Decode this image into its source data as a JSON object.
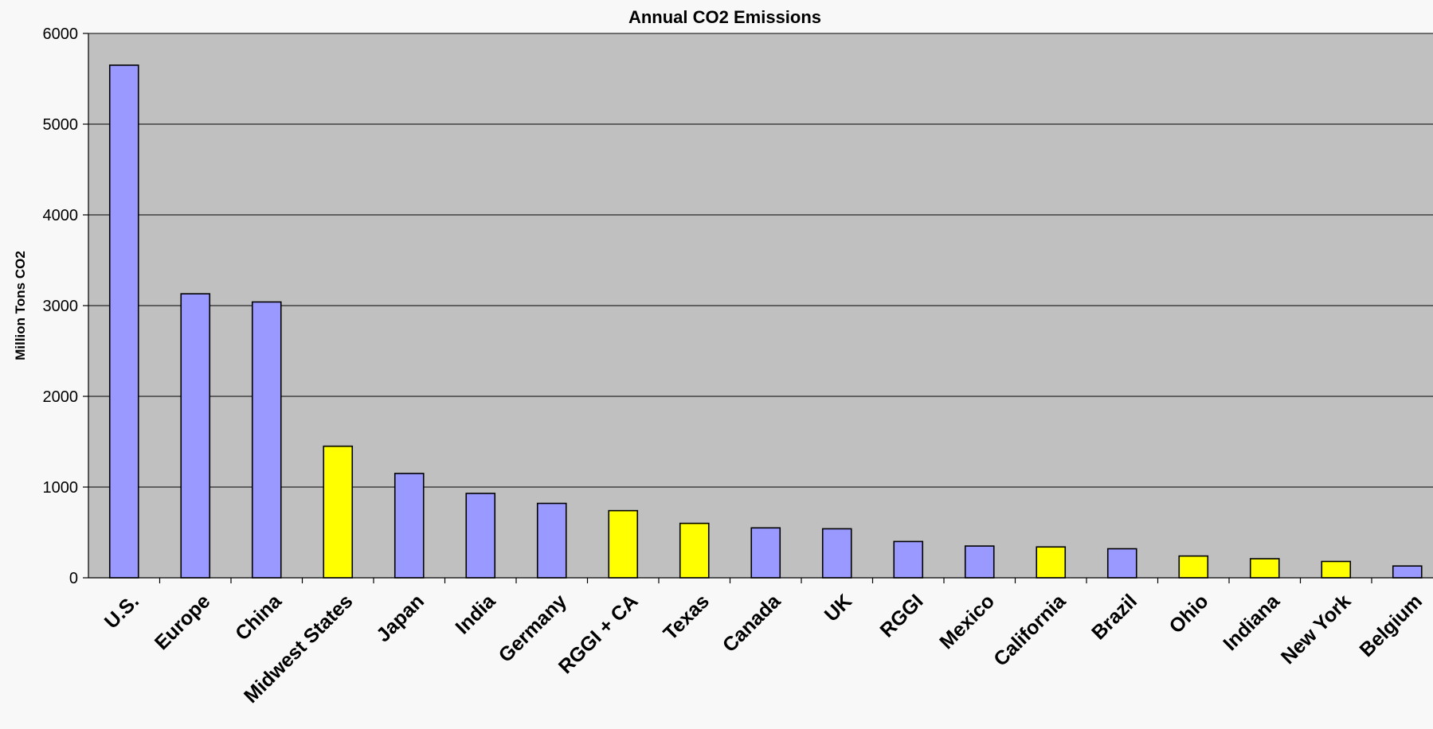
{
  "chart_data": {
    "type": "bar",
    "title": "Annual CO2 Emissions",
    "xlabel": "",
    "ylabel": "Million Tons CO2",
    "ylim": [
      0,
      6000
    ],
    "yticks": [
      "0",
      "1000",
      "2000",
      "3000",
      "4000",
      "5000",
      "6000"
    ],
    "grid": true,
    "categories": [
      "U.S.",
      "Europe",
      "China",
      "Midwest States",
      "Japan",
      "India",
      "Germany",
      "RGGI + CA",
      "Texas",
      "Canada",
      "UK",
      "RGGI",
      "Mexico",
      "California",
      "Brazil",
      "Ohio",
      "Indiana",
      "New York",
      "Belgium"
    ],
    "values": [
      5650,
      3130,
      3040,
      1450,
      1150,
      930,
      820,
      740,
      600,
      550,
      540,
      400,
      350,
      340,
      320,
      240,
      210,
      180,
      130
    ],
    "group": [
      "country",
      "country",
      "country",
      "state",
      "country",
      "country",
      "country",
      "state",
      "state",
      "country",
      "country",
      "country",
      "country",
      "state",
      "country",
      "state",
      "state",
      "state",
      "country"
    ],
    "colors": {
      "country": "#9999ff",
      "state": "#ffff00",
      "plot_background": "#c0c0c0",
      "page_background": "#f8f8f8"
    }
  }
}
